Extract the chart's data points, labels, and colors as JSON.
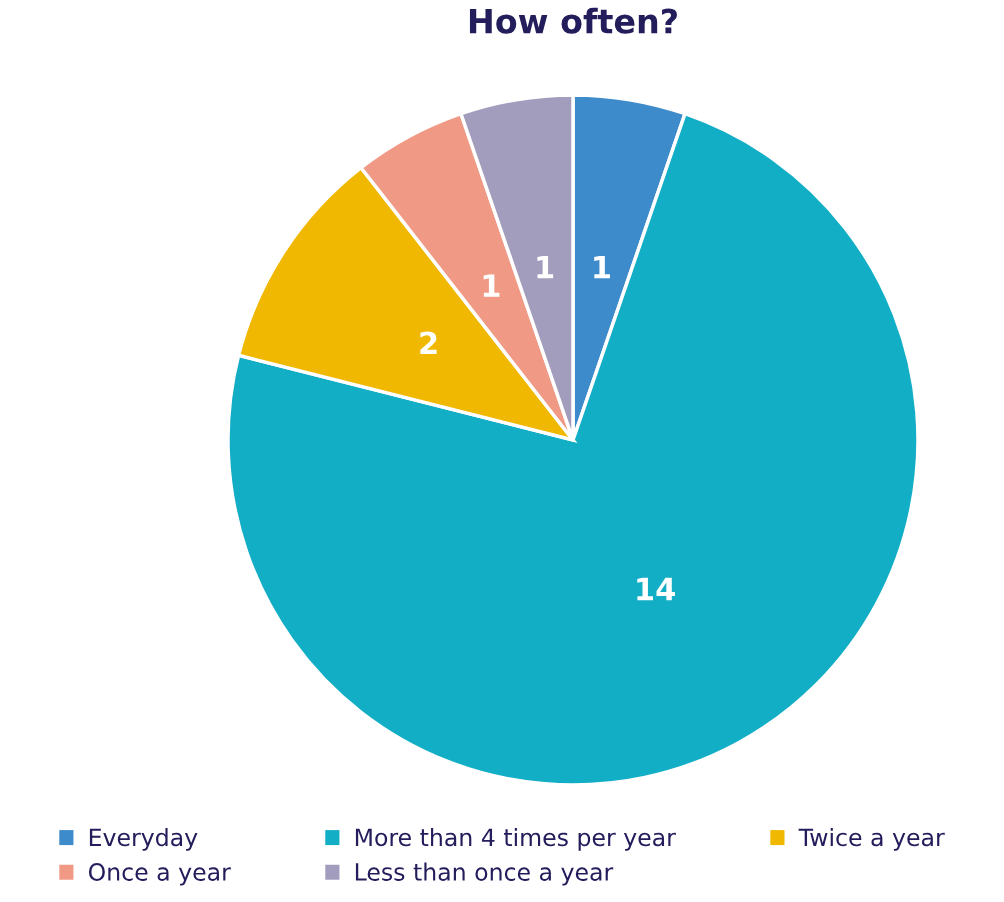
{
  "chart_data": {
    "type": "pie",
    "title": "How often?",
    "categories": [
      "Everyday",
      "More than 4 times per year",
      "Twice a year",
      "Once a year",
      "Less than once a year"
    ],
    "values": [
      1,
      14,
      2,
      1,
      1
    ],
    "colors": [
      "#3d8bcb",
      "#12aec6",
      "#f0b800",
      "#f09a86",
      "#a29dbd"
    ],
    "data_labels": true,
    "legend": "bottom"
  }
}
